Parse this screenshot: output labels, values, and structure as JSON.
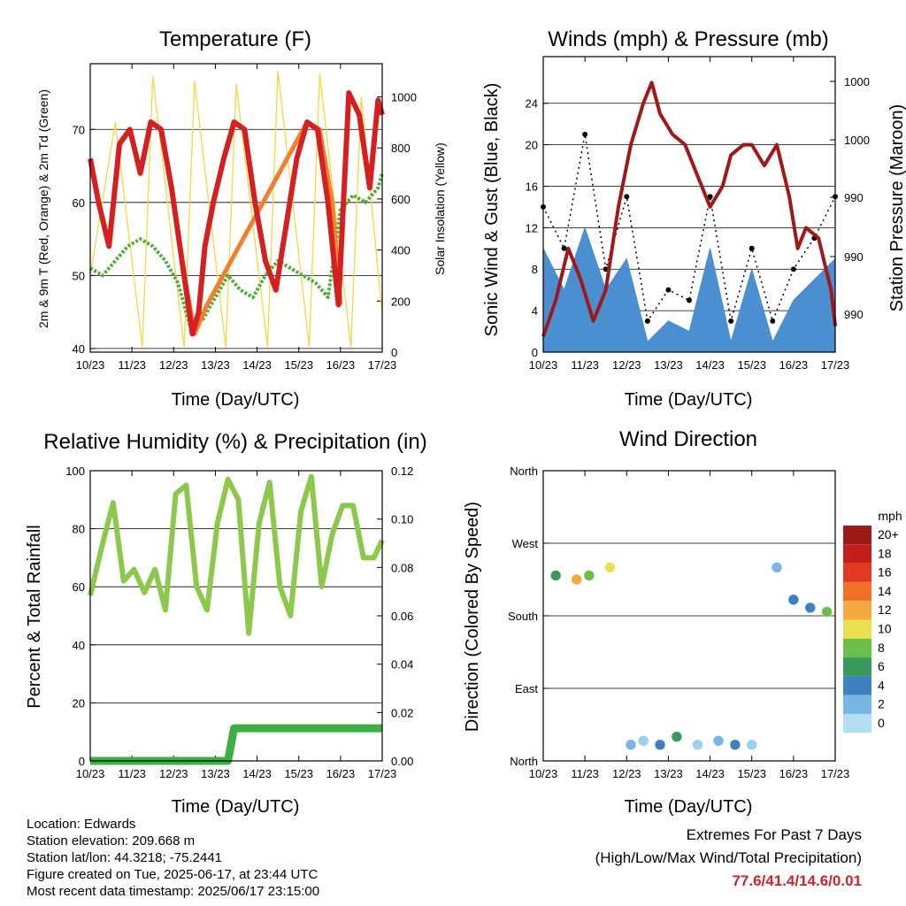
{
  "panels": {
    "temperature": {
      "title": "Temperature (F)",
      "y_label_left": "2m & 9m T (Red, Orange) & 2m Td (Green)",
      "y_label_right": "Solar Insolation (Yellow)",
      "x_label": "Time (Day/UTC)"
    },
    "winds": {
      "title": "Winds (mph) & Pressure (mb)",
      "y_label_left": "Sonic Wind & Gust (Blue, Black)",
      "y_label_right": "Station Pressure (Maroon)",
      "x_label": "Time (Day/UTC)"
    },
    "humidity": {
      "title": "Relative Humidity (%) & Precipitation (in)",
      "y_label_left": "Percent & Total Rainfall",
      "x_label": "Time (Day/UTC)"
    },
    "wind_direction": {
      "title": "Wind Direction",
      "y_label_left": "Direction (Colored By Speed)",
      "x_label": "Time (Day/UTC)",
      "legend_title": "mph",
      "legend_labels": [
        "20+",
        "18",
        "16",
        "14",
        "12",
        "10",
        "8",
        "6",
        "4",
        "2",
        "0"
      ]
    }
  },
  "colors": {
    "temp_2m": "#d42020",
    "temp_9m": "#f07f30",
    "dewpoint": "#4caf3a",
    "solar": "#f5d742",
    "wind": "#4a90d0",
    "gust": "#000000",
    "pressure": "#a01818",
    "rh": "#8cc84b",
    "precip": "#3cb043",
    "speed_scale": [
      "#b3dff5",
      "#9ad0f0",
      "#7ab6e3",
      "#5595d0",
      "#3f80c0",
      "#3a9a5c",
      "#6cbf4a",
      "#e8e050",
      "#f5a940",
      "#f07028",
      "#e23a22",
      "#c41e1e",
      "#9b1b1b"
    ]
  },
  "chart_data": [
    {
      "type": "line",
      "title": "Temperature (F)",
      "xlabel": "Time (Day/UTC)",
      "x_ticks": [
        "10/23",
        "11/23",
        "12/23",
        "13/23",
        "14/23",
        "15/23",
        "16/23",
        "17/23"
      ],
      "xlim": [
        0,
        7
      ],
      "ylabel": "2m & 9m T (Red, Orange) & 2m Td (Green)",
      "ylim": [
        39.5,
        79
      ],
      "y_ticks": [
        40,
        50,
        60,
        70
      ],
      "y2label": "Solar Insolation (Yellow)",
      "y2lim": [
        0,
        1130
      ],
      "y2_ticks": [
        0,
        200,
        400,
        600,
        800,
        1000
      ],
      "series": [
        {
          "name": "2m T",
          "axis": "left",
          "x": [
            0,
            0.2,
            0.45,
            0.7,
            0.95,
            1.2,
            1.45,
            1.7,
            1.95,
            2.2,
            2.45,
            2.6,
            2.75,
            2.95,
            3.2,
            3.45,
            3.7,
            3.95,
            4.2,
            4.45,
            4.7,
            4.95,
            5.2,
            5.45,
            5.7,
            5.95,
            6.2,
            6.45,
            6.7,
            6.9,
            7
          ],
          "y": [
            66,
            60,
            54,
            68,
            70,
            64,
            71,
            70,
            62,
            52,
            42,
            45,
            54,
            60,
            66,
            71,
            70,
            60,
            52,
            48,
            57,
            66,
            71,
            70,
            60,
            46,
            75,
            72,
            62,
            74,
            72
          ]
        },
        {
          "name": "9m T",
          "axis": "left",
          "x": [
            2.2,
            2.5,
            2.8,
            5.2,
            5.5,
            5.8,
            6.0
          ],
          "y": [
            52,
            42,
            46,
            71,
            70,
            60,
            46
          ]
        },
        {
          "name": "2m Td",
          "axis": "left",
          "x": [
            0,
            0.3,
            0.6,
            0.9,
            1.2,
            1.5,
            1.8,
            2.1,
            2.4,
            2.7,
            3.0,
            3.3,
            3.6,
            3.9,
            4.2,
            4.5,
            4.8,
            5.1,
            5.4,
            5.7,
            6.0,
            6.3,
            6.6,
            6.9,
            7
          ],
          "y": [
            51,
            50,
            52,
            54,
            55,
            54,
            52,
            49,
            43,
            44,
            47,
            50,
            48,
            47,
            50,
            52,
            51,
            50,
            49,
            47,
            59,
            61,
            60,
            62,
            64
          ]
        },
        {
          "name": "Solar Insolation",
          "axis": "right",
          "x": [
            0,
            0.6,
            1.25,
            1.5,
            2.25,
            2.5,
            3.25,
            3.5,
            4.25,
            4.5,
            5.25,
            5.5,
            6.25,
            6.5,
            7
          ],
          "y": [
            300,
            900,
            20,
            1080,
            20,
            1060,
            20,
            1050,
            20,
            1100,
            20,
            1090,
            20,
            1000,
            150
          ]
        }
      ]
    },
    {
      "type": "scatter",
      "title": "Winds (mph) & Pressure (mb)",
      "xlabel": "Time (Day/UTC)",
      "x_ticks": [
        "10/23",
        "11/23",
        "12/23",
        "13/23",
        "14/23",
        "15/23",
        "16/23",
        "17/23"
      ],
      "xlim": [
        0,
        7
      ],
      "ylabel": "Sonic Wind & Gust (Blue, Black)",
      "ylim": [
        0,
        28.5
      ],
      "y_ticks": [
        0,
        4,
        8,
        12,
        16,
        20,
        24
      ],
      "y2label": "Station Pressure (Maroon)",
      "y2_ticks": [
        "990",
        "990",
        "990",
        "1000",
        "1000"
      ],
      "series": [
        {
          "name": "Sonic Wind",
          "x": [
            0,
            0.5,
            1.0,
            1.5,
            2.0,
            2.5,
            3.0,
            3.5,
            4.0,
            4.5,
            5.0,
            5.5,
            6.0,
            6.5,
            7
          ],
          "y": [
            10,
            6,
            12,
            6,
            9,
            1,
            3,
            2,
            10,
            1,
            8,
            1,
            5,
            7,
            9
          ]
        },
        {
          "name": "Gust",
          "x": [
            0,
            0.5,
            1.0,
            1.5,
            2.0,
            2.5,
            3.0,
            3.5,
            4.0,
            4.5,
            5.0,
            5.5,
            6.0,
            6.5,
            7
          ],
          "y": [
            14,
            10,
            21,
            8,
            15,
            3,
            6,
            5,
            15,
            3,
            10,
            3,
            8,
            11,
            15
          ]
        },
        {
          "name": "Station Pressure",
          "x": [
            0,
            0.3,
            0.6,
            0.9,
            1.2,
            1.5,
            1.8,
            2.1,
            2.4,
            2.6,
            2.8,
            3.1,
            3.4,
            3.7,
            4.0,
            4.3,
            4.5,
            4.8,
            5.0,
            5.3,
            5.6,
            5.9,
            6.1,
            6.3,
            6.6,
            6.9,
            7
          ],
          "y": [
            1.5,
            5,
            10,
            7,
            3,
            6,
            14,
            20,
            24,
            26,
            23,
            21,
            20,
            17,
            14,
            16,
            19,
            20,
            20,
            18,
            20,
            15,
            10,
            12,
            11,
            6,
            2.5
          ]
        }
      ]
    },
    {
      "type": "line",
      "title": "Relative Humidity (%) & Precipitation (in)",
      "xlabel": "Time (Day/UTC)",
      "x_ticks": [
        "10/23",
        "11/23",
        "12/23",
        "13/23",
        "14/23",
        "15/23",
        "16/23",
        "17/23"
      ],
      "xlim": [
        0,
        7
      ],
      "ylabel": "Percent & Total Rainfall",
      "ylim": [
        0,
        100
      ],
      "y_ticks": [
        0,
        20,
        40,
        60,
        80,
        100
      ],
      "y2lim": [
        0,
        0.12
      ],
      "y2_ticks": [
        "0.00",
        "0.02",
        "0.04",
        "0.06",
        "0.08",
        "0.10",
        "0.12"
      ],
      "series": [
        {
          "name": "Relative Humidity",
          "axis": "left",
          "x": [
            0,
            0.3,
            0.55,
            0.8,
            1.05,
            1.3,
            1.55,
            1.8,
            2.05,
            2.3,
            2.55,
            2.8,
            3.05,
            3.3,
            3.55,
            3.8,
            4.05,
            4.3,
            4.55,
            4.8,
            5.05,
            5.3,
            5.55,
            5.8,
            6.05,
            6.3,
            6.55,
            6.8,
            7
          ],
          "y": [
            57,
            75,
            89,
            62,
            66,
            58,
            66,
            52,
            92,
            95,
            60,
            52,
            82,
            97,
            90,
            44,
            82,
            96,
            60,
            50,
            86,
            98,
            60,
            78,
            88,
            88,
            70,
            70,
            76
          ]
        },
        {
          "name": "Total Precipitation",
          "axis": "right",
          "x": [
            0,
            3.3,
            3.45,
            7
          ],
          "y": [
            0,
            0,
            0.0135,
            0.0135
          ]
        }
      ]
    },
    {
      "type": "scatter",
      "title": "Wind Direction",
      "xlabel": "Time (Day/UTC)",
      "x_ticks": [
        "10/23",
        "11/23",
        "12/23",
        "13/23",
        "14/23",
        "15/23",
        "16/23",
        "17/23"
      ],
      "xlim": [
        0,
        7
      ],
      "ylabel": "Direction (Colored By Speed)",
      "y_tick_labels": [
        "North",
        "East",
        "South",
        "West",
        "North"
      ],
      "ylim": [
        0,
        360
      ],
      "legend_title": "mph",
      "legend_labels": [
        "20+",
        "18",
        "16",
        "14",
        "12",
        "10",
        "8",
        "6",
        "4",
        "2",
        "0"
      ],
      "series": [
        {
          "name": "Direction",
          "x": [
            0.3,
            0.8,
            1.1,
            1.6,
            2.1,
            2.4,
            2.8,
            3.2,
            3.7,
            4.2,
            4.6,
            5.0,
            5.6,
            6.0,
            6.4,
            6.8
          ],
          "y": [
            230,
            225,
            230,
            240,
            20,
            25,
            20,
            30,
            20,
            25,
            20,
            20,
            240,
            200,
            190,
            185
          ],
          "speed": [
            8,
            14,
            10,
            12,
            4,
            2,
            6,
            8,
            2,
            4,
            6,
            2,
            4,
            6,
            6,
            10
          ]
        }
      ]
    }
  ],
  "footer": {
    "location": "Location: Edwards",
    "elevation": "Station elevation: 209.668 m",
    "latlon": "Station lat/lon: 44.3218; -75.2441",
    "created": "Figure created on Tue, 2025-06-17, at 23:44 UTC",
    "recent": "Most recent data timestamp: 2025/06/17 23:15:00"
  },
  "extremes": {
    "heading": "Extremes For Past 7 Days",
    "subheading": "(High/Low/Max Wind/Total Precipitation)",
    "values": "77.6/41.4/14.6/0.01"
  }
}
